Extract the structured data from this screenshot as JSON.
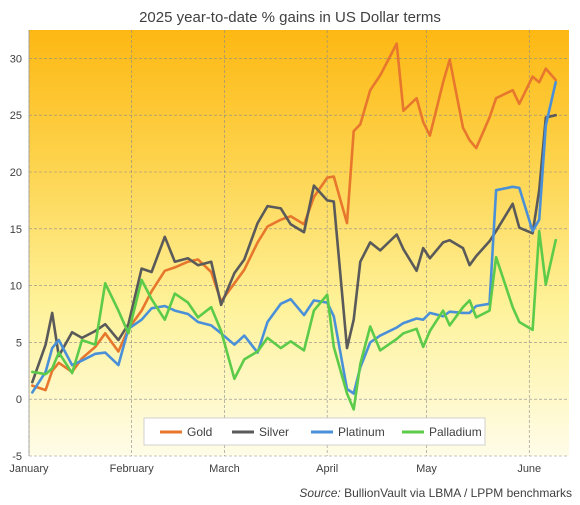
{
  "chart_data": {
    "type": "line",
    "title": "2025 year-to-date  % gains in US Dollar terms",
    "ylim": [
      -5,
      32.5
    ],
    "yticks": [
      -5,
      0,
      5,
      10,
      15,
      20,
      25,
      30
    ],
    "xlim": [
      "2025-01-01",
      "2025-06-13"
    ],
    "xticks": [
      {
        "label": "January",
        "date": "2025-01-01"
      },
      {
        "label": "February",
        "date": "2025-02-01"
      },
      {
        "label": "March",
        "date": "2025-03-01"
      },
      {
        "label": "April",
        "date": "2025-04-01"
      },
      {
        "label": "May",
        "date": "2025-05-01"
      },
      {
        "label": "June",
        "date": "2025-06-01"
      }
    ],
    "background": {
      "top": "#FDB813",
      "bottom": "#FFFCE8"
    },
    "legend_position": "bottom-center",
    "series": [
      {
        "name": "Gold",
        "color": "#E8772E",
        "x": [
          "2025-01-02",
          "2025-01-06",
          "2025-01-08",
          "2025-01-10",
          "2025-01-14",
          "2025-01-17",
          "2025-01-21",
          "2025-01-24",
          "2025-01-28",
          "2025-01-31",
          "2025-02-04",
          "2025-02-07",
          "2025-02-11",
          "2025-02-14",
          "2025-02-18",
          "2025-02-21",
          "2025-02-25",
          "2025-02-28",
          "2025-03-04",
          "2025-03-07",
          "2025-03-11",
          "2025-03-14",
          "2025-03-18",
          "2025-03-21",
          "2025-03-25",
          "2025-03-28",
          "2025-04-01",
          "2025-04-03",
          "2025-04-07",
          "2025-04-09",
          "2025-04-11",
          "2025-04-14",
          "2025-04-17",
          "2025-04-22",
          "2025-04-24",
          "2025-04-28",
          "2025-04-30",
          "2025-05-02",
          "2025-05-06",
          "2025-05-08",
          "2025-05-12",
          "2025-05-14",
          "2025-05-16",
          "2025-05-20",
          "2025-05-22",
          "2025-05-27",
          "2025-05-29",
          "2025-06-02",
          "2025-06-04",
          "2025-06-06",
          "2025-06-09"
        ],
        "values": [
          1.2,
          0.8,
          2.5,
          3.2,
          2.4,
          3.6,
          4.6,
          5.8,
          4.2,
          6.2,
          7.8,
          9.5,
          11.3,
          11.6,
          12.1,
          12.3,
          11.2,
          8.6,
          10.2,
          11.4,
          13.8,
          15.2,
          15.8,
          16.1,
          15.4,
          17.8,
          19.5,
          19.6,
          15.5,
          23.6,
          24.2,
          27.2,
          28.5,
          31.3,
          25.4,
          26.5,
          24.4,
          23.2,
          27.9,
          29.9,
          23.9,
          22.8,
          22.1,
          24.8,
          26.5,
          27.2,
          26.0,
          28.4,
          27.9,
          29.1,
          28.1
        ]
      },
      {
        "name": "Silver",
        "color": "#5A5A5A",
        "x": [
          "2025-01-02",
          "2025-01-06",
          "2025-01-08",
          "2025-01-10",
          "2025-01-14",
          "2025-01-17",
          "2025-01-21",
          "2025-01-24",
          "2025-01-28",
          "2025-01-31",
          "2025-02-04",
          "2025-02-07",
          "2025-02-11",
          "2025-02-14",
          "2025-02-18",
          "2025-02-21",
          "2025-02-25",
          "2025-02-28",
          "2025-03-04",
          "2025-03-07",
          "2025-03-11",
          "2025-03-14",
          "2025-03-18",
          "2025-03-21",
          "2025-03-25",
          "2025-03-28",
          "2025-04-01",
          "2025-04-03",
          "2025-04-07",
          "2025-04-09",
          "2025-04-11",
          "2025-04-14",
          "2025-04-17",
          "2025-04-22",
          "2025-04-24",
          "2025-04-28",
          "2025-04-30",
          "2025-05-02",
          "2025-05-06",
          "2025-05-08",
          "2025-05-12",
          "2025-05-14",
          "2025-05-16",
          "2025-05-20",
          "2025-05-22",
          "2025-05-27",
          "2025-05-29",
          "2025-06-02",
          "2025-06-04",
          "2025-06-06",
          "2025-06-09"
        ],
        "values": [
          1.5,
          4.8,
          7.6,
          3.8,
          5.9,
          5.4,
          6.0,
          6.6,
          5.2,
          6.6,
          11.5,
          11.2,
          14.3,
          12.1,
          12.4,
          11.8,
          12.1,
          8.3,
          11.1,
          12.3,
          15.5,
          17.0,
          16.8,
          15.4,
          14.7,
          18.8,
          17.5,
          17.4,
          4.5,
          7.0,
          12.1,
          13.8,
          13.1,
          14.5,
          13.2,
          11.3,
          13.3,
          12.4,
          13.8,
          14.0,
          13.3,
          11.8,
          12.6,
          13.9,
          14.8,
          17.2,
          15.1,
          14.6,
          18.4,
          24.8,
          25.0
        ]
      },
      {
        "name": "Platinum",
        "color": "#4A90D9",
        "x": [
          "2025-01-02",
          "2025-01-06",
          "2025-01-08",
          "2025-01-10",
          "2025-01-14",
          "2025-01-17",
          "2025-01-21",
          "2025-01-24",
          "2025-01-28",
          "2025-01-31",
          "2025-02-04",
          "2025-02-07",
          "2025-02-11",
          "2025-02-14",
          "2025-02-18",
          "2025-02-21",
          "2025-02-25",
          "2025-02-28",
          "2025-03-04",
          "2025-03-07",
          "2025-03-11",
          "2025-03-14",
          "2025-03-18",
          "2025-03-21",
          "2025-03-25",
          "2025-03-28",
          "2025-04-01",
          "2025-04-03",
          "2025-04-07",
          "2025-04-09",
          "2025-04-11",
          "2025-04-14",
          "2025-04-17",
          "2025-04-22",
          "2025-04-24",
          "2025-04-28",
          "2025-04-30",
          "2025-05-02",
          "2025-05-06",
          "2025-05-08",
          "2025-05-12",
          "2025-05-14",
          "2025-05-16",
          "2025-05-20",
          "2025-05-22",
          "2025-05-27",
          "2025-05-29",
          "2025-06-02",
          "2025-06-04",
          "2025-06-06",
          "2025-06-09"
        ],
        "values": [
          0.6,
          2.4,
          4.5,
          5.2,
          3.0,
          3.4,
          4.0,
          4.1,
          3.0,
          6.2,
          7.0,
          8.0,
          8.2,
          7.8,
          7.5,
          6.8,
          6.5,
          5.8,
          4.8,
          5.6,
          4.1,
          6.8,
          8.4,
          8.8,
          7.4,
          8.7,
          8.5,
          7.3,
          0.9,
          0.5,
          2.8,
          5.0,
          5.6,
          6.3,
          6.7,
          7.1,
          7.0,
          7.6,
          7.3,
          7.7,
          7.6,
          7.6,
          8.2,
          8.4,
          18.4,
          18.7,
          18.6,
          14.8,
          15.8,
          24.1,
          27.9
        ]
      },
      {
        "name": "Palladium",
        "color": "#5CCB4A",
        "x": [
          "2025-01-02",
          "2025-01-06",
          "2025-01-08",
          "2025-01-10",
          "2025-01-14",
          "2025-01-17",
          "2025-01-21",
          "2025-01-24",
          "2025-01-28",
          "2025-01-31",
          "2025-02-04",
          "2025-02-07",
          "2025-02-11",
          "2025-02-14",
          "2025-02-18",
          "2025-02-21",
          "2025-02-25",
          "2025-02-28",
          "2025-03-04",
          "2025-03-07",
          "2025-03-11",
          "2025-03-14",
          "2025-03-18",
          "2025-03-21",
          "2025-03-25",
          "2025-03-28",
          "2025-04-01",
          "2025-04-03",
          "2025-04-07",
          "2025-04-09",
          "2025-04-11",
          "2025-04-14",
          "2025-04-17",
          "2025-04-22",
          "2025-04-24",
          "2025-04-28",
          "2025-04-30",
          "2025-05-02",
          "2025-05-06",
          "2025-05-08",
          "2025-05-12",
          "2025-05-14",
          "2025-05-16",
          "2025-05-20",
          "2025-05-22",
          "2025-05-27",
          "2025-05-29",
          "2025-06-02",
          "2025-06-04",
          "2025-06-06",
          "2025-06-09"
        ],
        "values": [
          2.4,
          2.2,
          2.7,
          4.1,
          2.3,
          5.2,
          4.8,
          10.2,
          7.8,
          5.8,
          10.5,
          8.8,
          7.0,
          9.3,
          8.5,
          7.2,
          8.1,
          6.0,
          1.8,
          3.5,
          4.2,
          5.4,
          4.5,
          5.1,
          4.3,
          7.8,
          9.2,
          4.6,
          0.5,
          -0.9,
          3.1,
          6.4,
          4.3,
          5.3,
          5.8,
          6.2,
          4.6,
          6.0,
          7.8,
          6.5,
          8.1,
          8.7,
          7.2,
          7.8,
          12.5,
          8.1,
          6.8,
          6.1,
          14.8,
          10.1,
          14.0
        ]
      }
    ]
  },
  "source": {
    "prefix": "Source:",
    "text": "BullionVault via LBMA / LPPM benchmarks"
  }
}
